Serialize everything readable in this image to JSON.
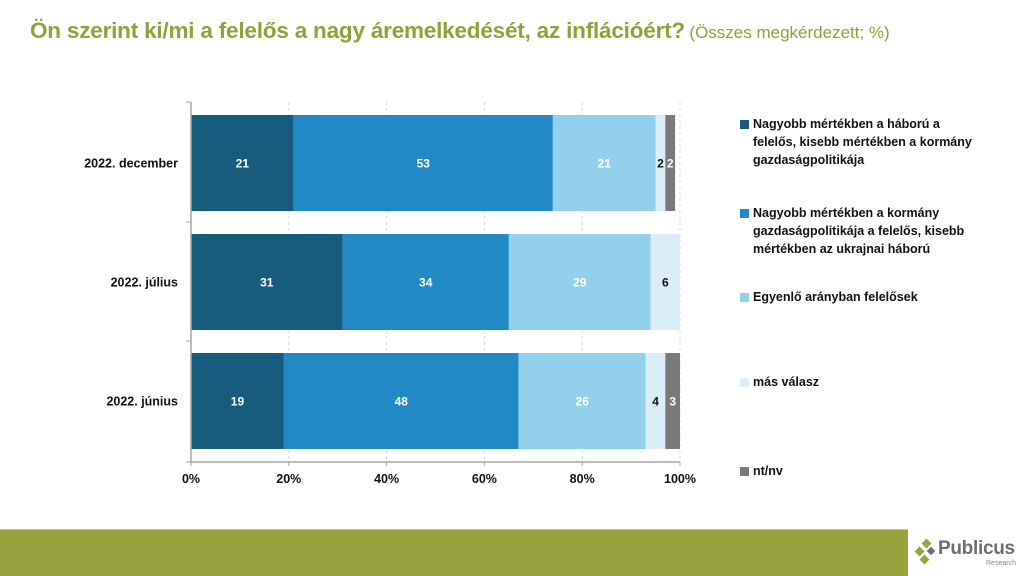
{
  "header": {
    "title": "Ön szerint ki/mi a felelős a nagy áremelkedését, az inflációért?",
    "subtitle": "(Összes megkérdezett; %)"
  },
  "chart_data": {
    "type": "bar",
    "orientation": "horizontal",
    "stacked": true,
    "title": "Ön szerint ki/mi a felelős a nagy áremelkedését, az inflációért?",
    "subtitle": "(Összes megkérdezett; %)",
    "xlabel": "",
    "ylabel": "",
    "xlim": [
      0,
      100
    ],
    "x_ticks": [
      "0%",
      "20%",
      "40%",
      "60%",
      "80%",
      "100%"
    ],
    "grid": "vertical dashed",
    "legend_position": "right",
    "categories": [
      "2022. december",
      "2022. július",
      "2022. június"
    ],
    "series": [
      {
        "name": "Nagyobb mértékben a háború a felelős, kisebb mértékben a kormány gazdaságpolitikája",
        "color": "#175c7d",
        "label_color": "#ffffff",
        "values": [
          21,
          31,
          19
        ]
      },
      {
        "name": "Nagyobb mértékben a kormány gazdaságpolitikája a felelős, kisebb mértékben az ukrajnai háború",
        "color": "#2189c3",
        "label_color": "#ffffff",
        "values": [
          53,
          34,
          48
        ]
      },
      {
        "name": "Egyenlő arányban felelősek",
        "color": "#92d0ec",
        "label_color": "#ffffff",
        "values": [
          21,
          29,
          26
        ]
      },
      {
        "name": "más válasz",
        "color": "#dbeef8",
        "label_color": "#111111",
        "values": [
          2,
          6,
          4
        ]
      },
      {
        "name": "nt/nv",
        "color": "#7a7a7a",
        "label_color": "#ffffff",
        "values": [
          2,
          0,
          3
        ]
      }
    ]
  },
  "legend": {
    "items": [
      {
        "label": "Nagyobb mértékben a háború a felelős, kisebb mértékben a kormány gazdaságpolitikája",
        "color": "#175c7d"
      },
      {
        "label": "Nagyobb mértékben a kormány gazdaságpolitikája a felelős, kisebb mértékben az ukrajnai háború",
        "color": "#2189c3"
      },
      {
        "label": "Egyenlő arányban felelősek",
        "color": "#92d0ec"
      },
      {
        "label": "más válasz",
        "color": "#dbeef8"
      },
      {
        "label": "nt/nv",
        "color": "#7a7a7a"
      }
    ]
  },
  "footer": {
    "logo_name": "Publicus",
    "logo_sub": "Research",
    "band_color": "#97a33f"
  }
}
